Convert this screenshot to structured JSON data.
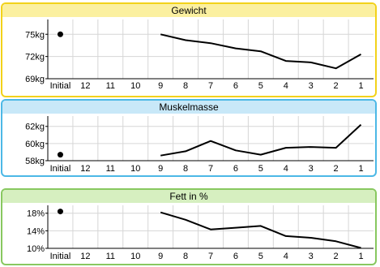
{
  "colors": {
    "panel1_border": "#f2d21a",
    "panel1_header": "#fbf0a0",
    "panel2_border": "#4cb8e6",
    "panel2_header": "#c8e8f8",
    "panel3_border": "#88c860",
    "panel3_header": "#d6efc0"
  },
  "chart_data": [
    {
      "type": "line",
      "title": "Gewicht",
      "categories": [
        "Initial",
        "12",
        "11",
        "10",
        "9",
        "8",
        "7",
        "6",
        "5",
        "4",
        "3",
        "2",
        "1"
      ],
      "yticks": [
        "69kg",
        "72kg",
        "75kg"
      ],
      "ytick_values": [
        69,
        72,
        75
      ],
      "ylim": [
        69,
        77
      ],
      "initial_point": 75,
      "series": [
        {
          "values": [
            null,
            null,
            null,
            null,
            75,
            74.2,
            73.8,
            73.1,
            72.7,
            71.4,
            71.2,
            70.4,
            72.3
          ]
        }
      ],
      "grid": true
    },
    {
      "type": "line",
      "title": "Muskelmasse",
      "categories": [
        "Initial",
        "12",
        "11",
        "10",
        "9",
        "8",
        "7",
        "6",
        "5",
        "4",
        "3",
        "2",
        "1"
      ],
      "yticks": [
        "58kg",
        "60kg",
        "62kg"
      ],
      "ytick_values": [
        58,
        60,
        62
      ],
      "ylim": [
        58,
        63.2
      ],
      "initial_point": 58.7,
      "series": [
        {
          "values": [
            null,
            null,
            null,
            null,
            58.6,
            59.1,
            60.3,
            59.2,
            58.7,
            59.5,
            59.6,
            59.5,
            62.2
          ]
        }
      ],
      "grid": true
    },
    {
      "type": "line",
      "title": "Fett in %",
      "categories": [
        "Initial",
        "12",
        "11",
        "10",
        "9",
        "8",
        "7",
        "6",
        "5",
        "4",
        "3",
        "2",
        "1"
      ],
      "yticks": [
        "10%",
        "14%",
        "18%"
      ],
      "ytick_values": [
        10,
        14,
        18
      ],
      "ylim": [
        10,
        19.8
      ],
      "initial_point": 18.4,
      "series": [
        {
          "values": [
            null,
            null,
            null,
            null,
            18.2,
            16.5,
            14.3,
            14.7,
            15.1,
            12.8,
            12.4,
            11.6,
            10.1
          ]
        }
      ],
      "grid": true
    }
  ]
}
